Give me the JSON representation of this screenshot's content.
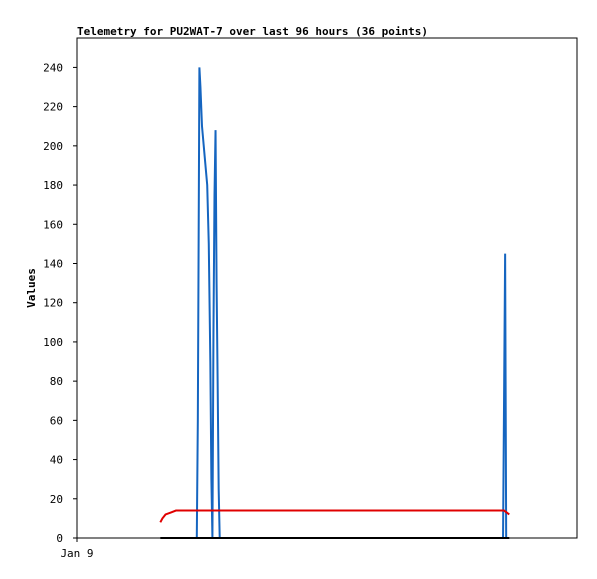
{
  "chart_data": {
    "type": "line",
    "title": "Telemetry for PU2WAT-7 over last 96 hours (36 points)",
    "y_label": "Values",
    "xlim": [
      0,
      96
    ],
    "xticks": [
      {
        "value": 0,
        "label": "Jan 9"
      }
    ],
    "ylim": [
      0,
      255
    ],
    "yticks": [
      0,
      20,
      40,
      60,
      80,
      100,
      120,
      140,
      160,
      180,
      200,
      220,
      240
    ],
    "series": [
      {
        "color": "#1565c0",
        "x": [
          23.0,
          23.2,
          23.4,
          23.5,
          23.7,
          24.0,
          24.5,
          25.0,
          25.3,
          25.6,
          25.8,
          26.0,
          26.2,
          26.4,
          26.6,
          26.8,
          27.0,
          27.2,
          27.4,
          81.8,
          82.0,
          82.2,
          82.4
        ],
        "values": [
          0,
          60,
          180,
          240,
          230,
          210,
          195,
          180,
          150,
          90,
          30,
          0,
          105,
          175,
          208,
          130,
          80,
          25,
          0,
          0,
          72,
          145,
          0
        ]
      },
      {
        "color": "#e00000",
        "x": [
          16.0,
          16.4,
          17.0,
          18.0,
          19.0,
          40.0,
          60.0,
          82.0,
          83.0
        ],
        "values": [
          8,
          10,
          12,
          13,
          14,
          14,
          14,
          14,
          12
        ]
      },
      {
        "color": "#000000",
        "x": [
          16.0,
          83.0
        ],
        "values": [
          0,
          0
        ]
      }
    ]
  }
}
